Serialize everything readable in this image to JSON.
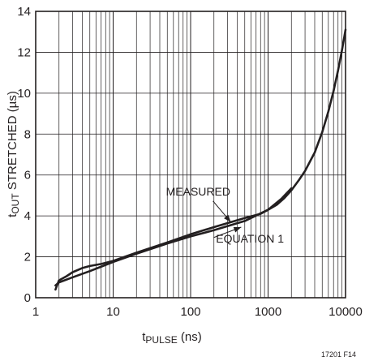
{
  "chart_data": {
    "type": "line",
    "xscale": "log",
    "xlim": [
      1,
      10000
    ],
    "ylim": [
      0,
      14
    ],
    "grid": true,
    "xlabel_main": "t",
    "xlabel_sub": "PULSE",
    "xlabel_unit": " (ns)",
    "ylabel_main": "t",
    "ylabel_sub": "OUT",
    "ylabel_rest": " STRETCHED (µs)",
    "x_ticks": [
      1,
      10,
      100,
      1000,
      10000
    ],
    "x_tick_labels": [
      "1",
      "10",
      "100",
      "1000",
      "10000"
    ],
    "y_ticks": [
      0,
      2,
      4,
      6,
      8,
      10,
      12,
      14
    ],
    "y_tick_labels": [
      "0",
      "2",
      "4",
      "6",
      "8",
      "10",
      "12",
      "14"
    ],
    "series": [
      {
        "name": "MEASURED",
        "x": [
          1.8,
          2.0,
          2.5,
          3,
          4,
          5,
          7,
          10,
          20,
          50,
          100,
          200,
          500,
          800,
          1000,
          1300,
          1600,
          2000,
          2500,
          3000,
          4000,
          5000,
          6000,
          7000,
          8000,
          9000,
          10000
        ],
        "y": [
          0.4,
          0.85,
          1.05,
          1.25,
          1.45,
          1.55,
          1.65,
          1.8,
          2.2,
          2.7,
          3.1,
          3.45,
          3.9,
          4.1,
          4.3,
          4.55,
          4.85,
          5.25,
          5.75,
          6.2,
          7.1,
          8.1,
          9.1,
          10.1,
          11.1,
          12.1,
          13.1
        ]
      },
      {
        "name": "EQUATION 1",
        "x": [
          1.8,
          2,
          3,
          5,
          10,
          20,
          50,
          100,
          200,
          500,
          1000,
          1500,
          2000
        ],
        "y": [
          0.6,
          0.75,
          1.0,
          1.3,
          1.75,
          2.15,
          2.65,
          3.0,
          3.3,
          3.75,
          4.3,
          4.85,
          5.35
        ]
      }
    ],
    "annotations": [
      {
        "text": "MEASURED",
        "x": 260,
        "y": 5.2
      },
      {
        "text": "EQUATION 1",
        "x": 800,
        "y": 2.9
      }
    ]
  },
  "figure_id": "17201 F14",
  "colors": {
    "ink": "#231f20",
    "background": "#ffffff"
  }
}
